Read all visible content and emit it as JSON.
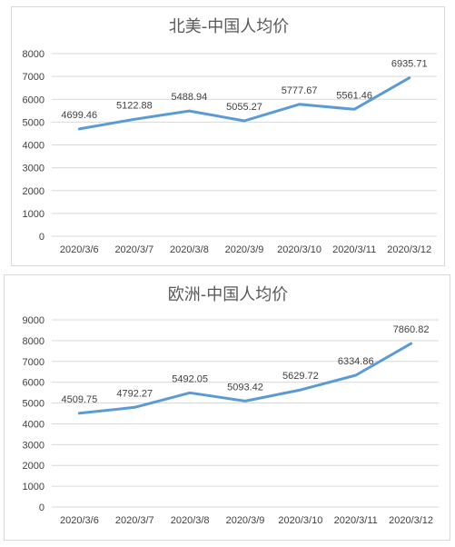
{
  "chart_data": [
    {
      "type": "line",
      "title": "北美-中国人均价",
      "categories": [
        "2020/3/6",
        "2020/3/7",
        "2020/3/8",
        "2020/3/9",
        "2020/3/10",
        "2020/3/11",
        "2020/3/12"
      ],
      "values": [
        4699.46,
        5122.88,
        5488.94,
        5055.27,
        5777.67,
        5561.46,
        6935.71
      ],
      "value_labels": [
        "4699.46",
        "5122.88",
        "5488.94",
        "5055.27",
        "5777.67",
        "5561.46",
        "6935.71"
      ],
      "ylim": [
        0,
        8000
      ],
      "yticks": [
        0,
        1000,
        2000,
        3000,
        4000,
        5000,
        6000,
        7000,
        8000
      ],
      "grid": true,
      "color": "#5b9bd5"
    },
    {
      "type": "line",
      "title": "欧洲-中国人均价",
      "categories": [
        "2020/3/6",
        "2020/3/7",
        "2020/3/8",
        "2020/3/9",
        "2020/3/10",
        "2020/3/11",
        "2020/3/12"
      ],
      "values": [
        4509.75,
        4792.27,
        5492.05,
        5093.42,
        5629.72,
        6334.86,
        7860.82
      ],
      "value_labels": [
        "4509.75",
        "4792.27",
        "5492.05",
        "5093.42",
        "5629.72",
        "6334.86",
        "7860.82"
      ],
      "ylim": [
        0,
        9000
      ],
      "yticks": [
        0,
        1000,
        2000,
        3000,
        4000,
        5000,
        6000,
        7000,
        8000,
        9000
      ],
      "grid": true,
      "color": "#5b9bd5"
    }
  ]
}
